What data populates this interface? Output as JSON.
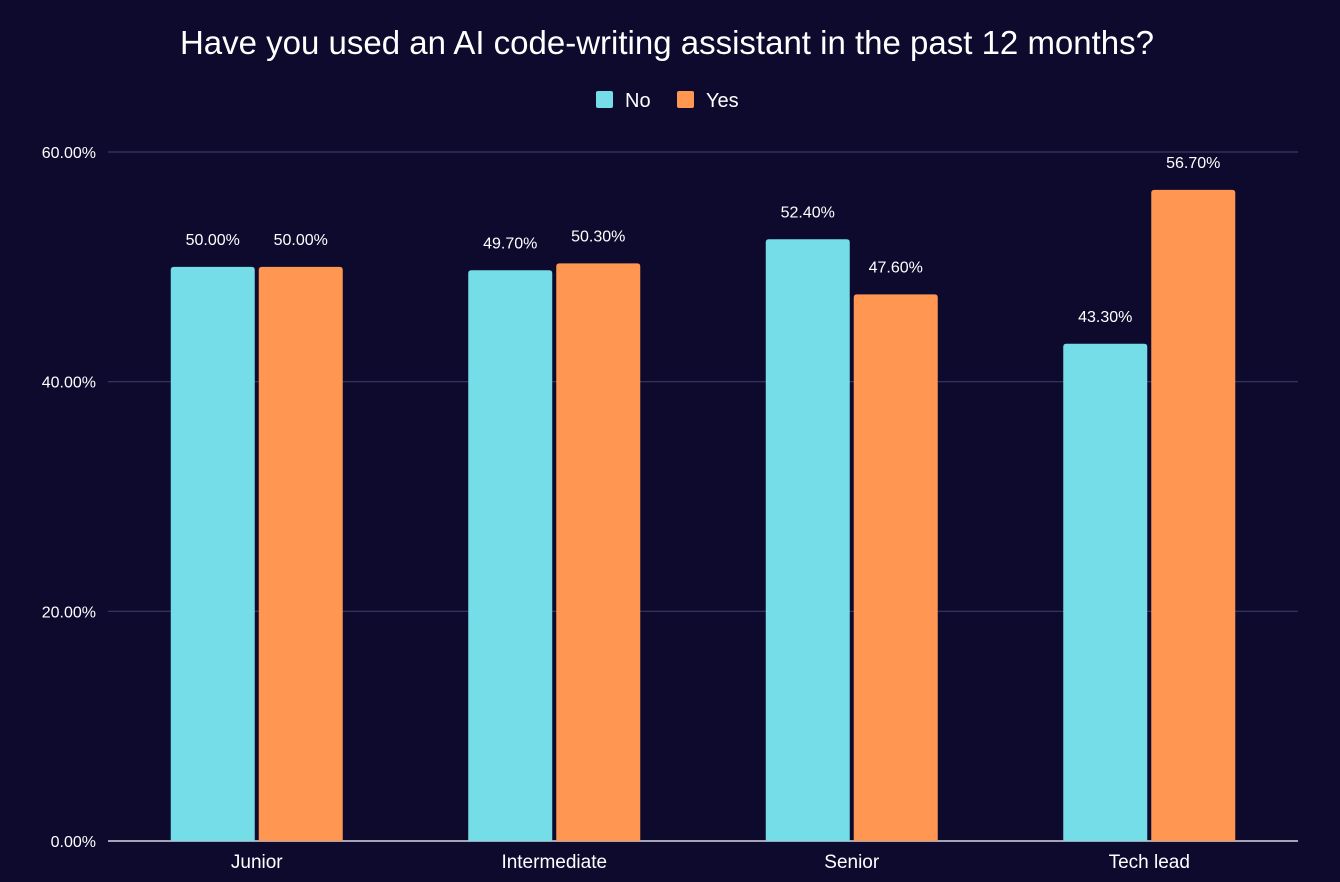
{
  "chart_data": {
    "type": "bar",
    "title": "Have you used an AI code-writing assistant in the past 12 months?",
    "xlabel": "",
    "ylabel": "",
    "categories": [
      "Junior",
      "Intermediate",
      "Senior",
      "Tech lead"
    ],
    "series": [
      {
        "name": "No",
        "color": "#74dde7",
        "values": [
          50.0,
          49.7,
          52.4,
          43.3
        ],
        "labels": [
          "50.00%",
          "49.70%",
          "52.40%",
          "43.30%"
        ]
      },
      {
        "name": "Yes",
        "color": "#ff9652",
        "values": [
          50.0,
          50.3,
          47.6,
          56.7
        ],
        "labels": [
          "50.00%",
          "50.30%",
          "47.60%",
          "56.70%"
        ]
      }
    ],
    "ylim": [
      0,
      60
    ],
    "yticks": [
      0,
      20,
      40,
      60
    ],
    "ytick_labels": [
      "0.00%",
      "20.00%",
      "40.00%",
      "60.00%"
    ],
    "grid": true,
    "legend_position": "top-center"
  }
}
